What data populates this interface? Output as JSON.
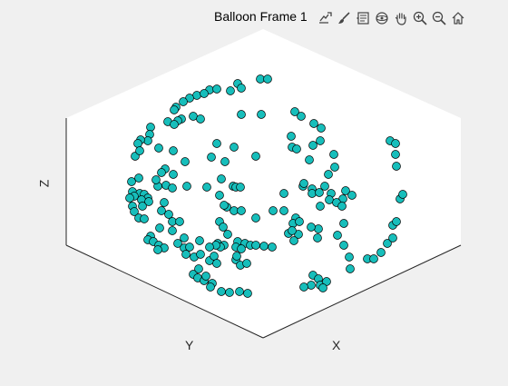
{
  "figure": {
    "title": "Balloon Frame 1",
    "toolbar": [
      {
        "name": "export-icon"
      },
      {
        "name": "brush-icon"
      },
      {
        "name": "data-tips-icon"
      },
      {
        "name": "rotate-3d-icon"
      },
      {
        "name": "pan-hand-icon"
      },
      {
        "name": "zoom-in-icon"
      },
      {
        "name": "zoom-out-icon"
      },
      {
        "name": "home-icon"
      }
    ]
  },
  "chart_data": {
    "type": "scatter",
    "title": "Balloon Frame 1",
    "xlabel": "X",
    "ylabel": "Y",
    "zlabel": "Z",
    "grid": false,
    "marker_color": "#17bebb",
    "marker_edge": "#000000",
    "points_screen": "projected 3D scatter of balloon surface points"
  },
  "colors": {
    "figure_bg": "#f0f0f0",
    "axes_bg": "#ffffff",
    "axis_line": "#262626",
    "marker_fill": "#17bebb"
  }
}
